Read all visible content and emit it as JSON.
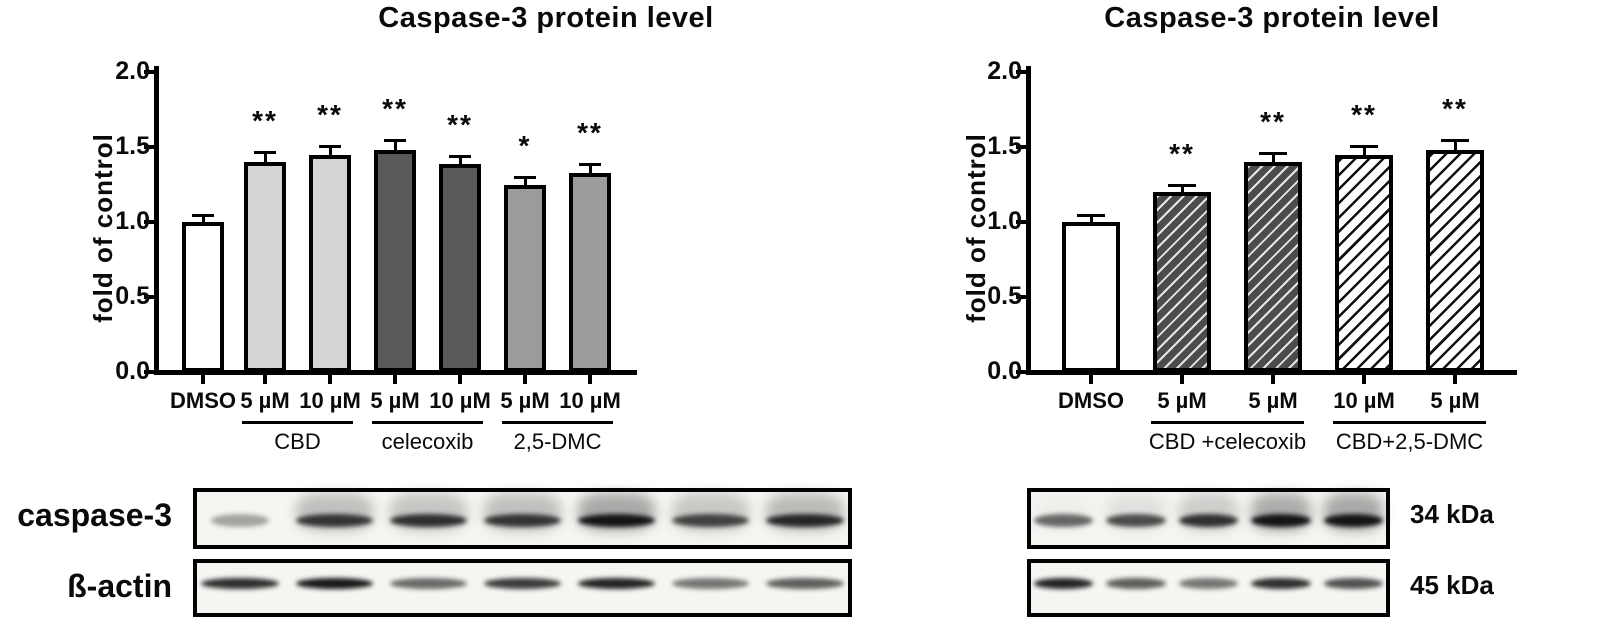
{
  "chart_data": [
    {
      "type": "bar",
      "title": "Caspase-3 protein level",
      "ylabel": "fold of control",
      "ylim": [
        0,
        2.0
      ],
      "ytick_labels": [
        "0.0",
        "0.5",
        "1.0",
        "1.5",
        "2.0"
      ],
      "categories": [
        "DMSO",
        "5 µM",
        "10 µM",
        "5 µM",
        "10 µM",
        "5 µM",
        "10 µM"
      ],
      "values": [
        1.0,
        1.4,
        1.45,
        1.48,
        1.39,
        1.25,
        1.33
      ],
      "errors": [
        0.05,
        0.07,
        0.06,
        0.07,
        0.05,
        0.05,
        0.06
      ],
      "significance": [
        "",
        "**",
        "**",
        "**",
        "**",
        "*",
        "**"
      ],
      "bar_fills": [
        "white",
        "lightgray",
        "lightgray",
        "darkgray",
        "darkgray",
        "midgray",
        "midgray"
      ],
      "groups": [
        {
          "label": "CBD",
          "start": 1,
          "end": 2
        },
        {
          "label": "celecoxib",
          "start": 3,
          "end": 4
        },
        {
          "label": "2,5-DMC",
          "start": 5,
          "end": 6
        }
      ],
      "grid": false,
      "legend": "none"
    },
    {
      "type": "bar",
      "title": "Caspase-3 protein level",
      "ylabel": "fold of control",
      "ylim": [
        0,
        2.0
      ],
      "ytick_labels": [
        "0.0",
        "0.5",
        "1.0",
        "1.5",
        "2.0"
      ],
      "categories": [
        "DMSO",
        "5 µM",
        "5 µM",
        "10 µM",
        "5 µM"
      ],
      "values": [
        1.0,
        1.2,
        1.4,
        1.45,
        1.48
      ],
      "errors": [
        0.05,
        0.05,
        0.06,
        0.06,
        0.07
      ],
      "significance": [
        "",
        "**",
        "**",
        "**",
        "**"
      ],
      "bar_fills": [
        "white",
        "darkhatch",
        "darkhatch",
        "lighthatch",
        "lighthatch"
      ],
      "groups": [
        {
          "label": "CBD +celecoxib",
          "start": 1,
          "end": 2
        },
        {
          "label": "CBD+2,5-DMC",
          "start": 3,
          "end": 4
        }
      ],
      "grid": false,
      "legend": "none"
    }
  ],
  "blots": {
    "left": {
      "rows": [
        {
          "label": "caspase-3",
          "lanes": 7,
          "band": [
            0.35,
            0.78,
            0.82,
            0.78,
            0.95,
            0.72,
            0.85
          ],
          "smudge": [
            0,
            0.5,
            0.45,
            0.5,
            0.72,
            0.42,
            0.55
          ]
        },
        {
          "label": "ß-actin",
          "lanes": 7,
          "band": [
            0.85,
            0.95,
            0.6,
            0.8,
            0.9,
            0.55,
            0.65
          ],
          "smudge": [
            0,
            0,
            0,
            0,
            0,
            0,
            0
          ]
        }
      ]
    },
    "right": {
      "rows": [
        {
          "label": "34 kDa",
          "lanes": 5,
          "band": [
            0.6,
            0.7,
            0.82,
            0.95,
            0.95
          ],
          "smudge": [
            0.06,
            0.18,
            0.38,
            0.68,
            0.72
          ]
        },
        {
          "label": "45 kDa",
          "lanes": 5,
          "band": [
            0.9,
            0.65,
            0.55,
            0.85,
            0.7
          ],
          "smudge": [
            0,
            0,
            0,
            0,
            0
          ]
        }
      ]
    }
  },
  "colors": {
    "axis": "#000000",
    "bar_white": "#ffffff",
    "bar_lightgray": "#d4d4d4",
    "bar_darkgray": "#595959",
    "bar_midgray": "#9b9b9b",
    "blot_background": "#f6f5f2",
    "text": "#0a0a0a"
  }
}
